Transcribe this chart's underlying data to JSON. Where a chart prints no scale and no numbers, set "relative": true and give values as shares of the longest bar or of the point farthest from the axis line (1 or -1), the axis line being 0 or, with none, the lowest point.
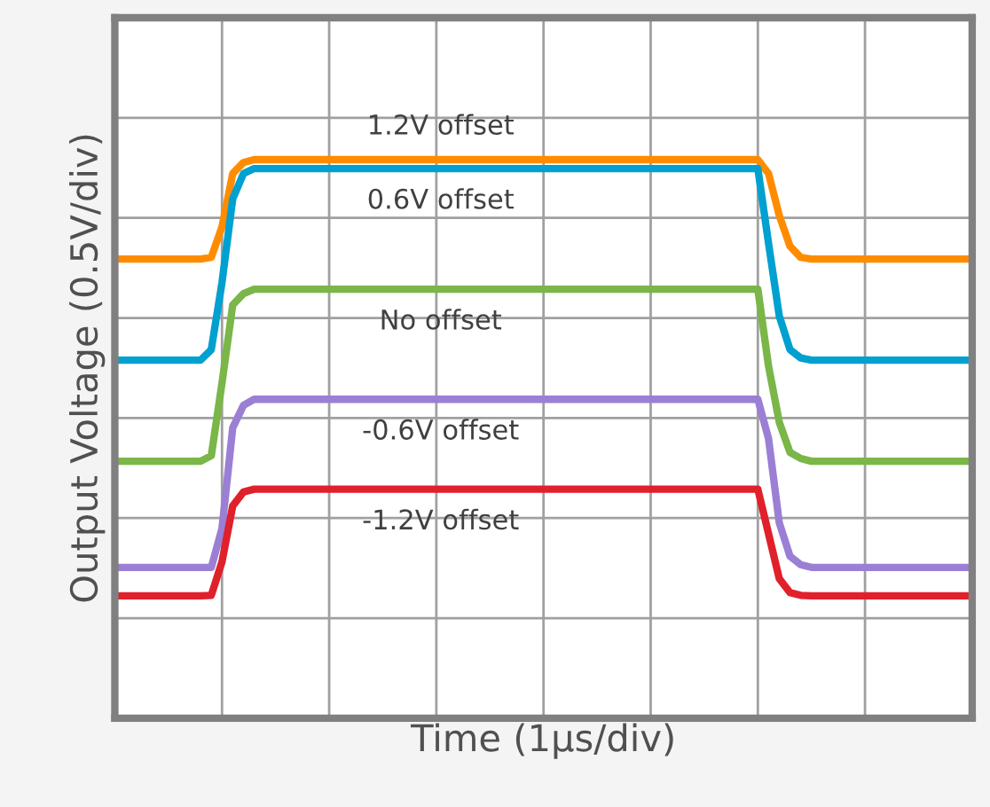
{
  "chart_data": {
    "type": "line",
    "relative": true,
    "xlabel": "Time (1µs/div)",
    "ylabel": "Output Voltage (0.5V/div)",
    "categories": [
      null,
      null,
      null,
      null,
      null,
      null,
      null,
      null,
      null,
      null,
      null,
      null,
      null,
      null,
      null,
      null,
      null,
      null,
      null,
      null,
      null,
      null,
      null,
      null,
      null,
      null,
      null,
      null,
      null,
      null,
      null,
      null,
      null,
      null,
      null,
      null,
      null,
      null,
      null,
      null,
      null,
      null,
      null,
      null,
      null,
      null,
      null,
      null,
      null,
      null,
      null,
      null,
      null,
      null,
      null,
      null,
      null,
      null,
      null,
      null,
      null,
      null,
      null,
      null,
      null,
      null,
      null,
      null,
      null,
      null,
      null,
      null,
      null,
      null,
      null,
      null,
      null,
      null,
      null,
      null,
      null
    ],
    "grid": true,
    "marker": "none",
    "line_style": "solid",
    "series": [
      {
        "name": "1.2V offset",
        "color": "#ff8c00",
        "values": [
          0.822,
          0.822,
          0.822,
          0.822,
          0.822,
          0.822,
          0.822,
          0.822,
          0.822,
          0.825,
          0.88,
          0.975,
          0.995,
          1.0,
          1.0,
          1.0,
          1.0,
          1.0,
          1.0,
          1.0,
          1.0,
          1.0,
          1.0,
          1.0,
          1.0,
          1.0,
          1.0,
          1.0,
          1.0,
          1.0,
          1.0,
          1.0,
          1.0,
          1.0,
          1.0,
          1.0,
          1.0,
          1.0,
          1.0,
          1.0,
          1.0,
          1.0,
          1.0,
          1.0,
          1.0,
          1.0,
          1.0,
          1.0,
          1.0,
          1.0,
          1.0,
          1.0,
          1.0,
          1.0,
          1.0,
          1.0,
          1.0,
          1.0,
          1.0,
          1.0,
          1.0,
          0.975,
          0.9,
          0.845,
          0.825,
          0.822,
          0.822,
          0.822,
          0.822,
          0.822,
          0.822,
          0.822,
          0.822,
          0.822,
          0.822,
          0.822,
          0.822,
          0.822,
          0.822,
          0.822,
          0.822
        ]
      },
      {
        "name": "0.6V offset",
        "color": "#00a0d0",
        "values": [
          0.641,
          0.641,
          0.641,
          0.641,
          0.641,
          0.641,
          0.641,
          0.641,
          0.641,
          0.66,
          0.78,
          0.93,
          0.975,
          0.984,
          0.984,
          0.984,
          0.984,
          0.984,
          0.984,
          0.984,
          0.984,
          0.984,
          0.984,
          0.984,
          0.984,
          0.984,
          0.984,
          0.984,
          0.984,
          0.984,
          0.984,
          0.984,
          0.984,
          0.984,
          0.984,
          0.984,
          0.984,
          0.984,
          0.984,
          0.984,
          0.984,
          0.984,
          0.984,
          0.984,
          0.984,
          0.984,
          0.984,
          0.984,
          0.984,
          0.984,
          0.984,
          0.984,
          0.984,
          0.984,
          0.984,
          0.984,
          0.984,
          0.984,
          0.984,
          0.984,
          0.984,
          0.85,
          0.72,
          0.66,
          0.645,
          0.641,
          0.641,
          0.641,
          0.641,
          0.641,
          0.641,
          0.641,
          0.641,
          0.641,
          0.641,
          0.641,
          0.641,
          0.641,
          0.641,
          0.641,
          0.641
        ]
      },
      {
        "name": "No offset",
        "color": "#7ab648",
        "values": [
          0.46,
          0.46,
          0.46,
          0.46,
          0.46,
          0.46,
          0.46,
          0.46,
          0.46,
          0.47,
          0.6,
          0.74,
          0.76,
          0.768,
          0.768,
          0.768,
          0.768,
          0.768,
          0.768,
          0.768,
          0.768,
          0.768,
          0.768,
          0.768,
          0.768,
          0.768,
          0.768,
          0.768,
          0.768,
          0.768,
          0.768,
          0.768,
          0.768,
          0.768,
          0.768,
          0.768,
          0.768,
          0.768,
          0.768,
          0.768,
          0.768,
          0.768,
          0.768,
          0.768,
          0.768,
          0.768,
          0.768,
          0.768,
          0.768,
          0.768,
          0.768,
          0.768,
          0.768,
          0.768,
          0.768,
          0.768,
          0.768,
          0.768,
          0.768,
          0.768,
          0.768,
          0.63,
          0.53,
          0.476,
          0.465,
          0.46,
          0.46,
          0.46,
          0.46,
          0.46,
          0.46,
          0.46,
          0.46,
          0.46,
          0.46,
          0.46,
          0.46,
          0.46,
          0.46,
          0.46,
          0.46
        ]
      },
      {
        "name": "-0.6V offset",
        "color": "#9b7fd4",
        "values": [
          0.27,
          0.27,
          0.27,
          0.27,
          0.27,
          0.27,
          0.27,
          0.27,
          0.27,
          0.27,
          0.34,
          0.52,
          0.56,
          0.571,
          0.571,
          0.571,
          0.571,
          0.571,
          0.571,
          0.571,
          0.571,
          0.571,
          0.571,
          0.571,
          0.571,
          0.571,
          0.571,
          0.571,
          0.571,
          0.571,
          0.571,
          0.571,
          0.571,
          0.571,
          0.571,
          0.571,
          0.571,
          0.571,
          0.571,
          0.571,
          0.571,
          0.571,
          0.571,
          0.571,
          0.571,
          0.571,
          0.571,
          0.571,
          0.571,
          0.571,
          0.571,
          0.571,
          0.571,
          0.571,
          0.571,
          0.571,
          0.571,
          0.571,
          0.571,
          0.571,
          0.571,
          0.5,
          0.35,
          0.29,
          0.275,
          0.27,
          0.27,
          0.27,
          0.27,
          0.27,
          0.27,
          0.27,
          0.27,
          0.27,
          0.27,
          0.27,
          0.27,
          0.27,
          0.27,
          0.27,
          0.27
        ]
      },
      {
        "name": "-1.2V offset",
        "color": "#e0202a",
        "values": [
          0.219,
          0.219,
          0.219,
          0.219,
          0.219,
          0.219,
          0.219,
          0.219,
          0.219,
          0.22,
          0.28,
          0.38,
          0.405,
          0.41,
          0.41,
          0.41,
          0.41,
          0.41,
          0.41,
          0.41,
          0.41,
          0.41,
          0.41,
          0.41,
          0.41,
          0.41,
          0.41,
          0.41,
          0.41,
          0.41,
          0.41,
          0.41,
          0.41,
          0.41,
          0.41,
          0.41,
          0.41,
          0.41,
          0.41,
          0.41,
          0.41,
          0.41,
          0.41,
          0.41,
          0.41,
          0.41,
          0.41,
          0.41,
          0.41,
          0.41,
          0.41,
          0.41,
          0.41,
          0.41,
          0.41,
          0.41,
          0.41,
          0.41,
          0.41,
          0.41,
          0.41,
          0.33,
          0.25,
          0.225,
          0.22,
          0.219,
          0.219,
          0.219,
          0.219,
          0.219,
          0.219,
          0.219,
          0.219,
          0.219,
          0.219,
          0.219,
          0.219,
          0.219,
          0.219,
          0.219,
          0.219
        ]
      }
    ]
  }
}
